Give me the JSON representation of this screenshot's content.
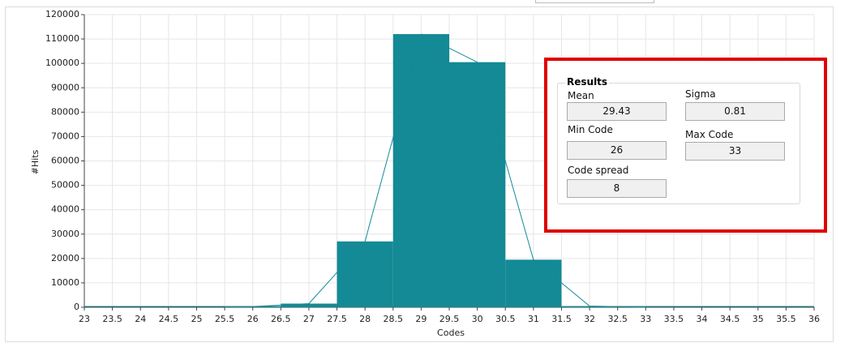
{
  "chart_data": {
    "type": "histogram",
    "xlabel": "Codes",
    "ylabel": "#Hits",
    "bins": [
      25.5,
      26.5,
      27.5,
      28.5,
      29.5,
      30.5,
      31.5,
      32.5,
      33.5
    ],
    "counts": [
      300,
      1500,
      27000,
      112000,
      100500,
      19500,
      500,
      50
    ],
    "color": "#138a96",
    "xlim": [
      23,
      36
    ],
    "ylim": [
      0,
      120000
    ],
    "xticks": [
      23,
      23.5,
      24,
      24.5,
      25,
      25.5,
      26,
      26.5,
      27,
      27.5,
      28,
      28.5,
      29,
      29.5,
      30,
      30.5,
      31,
      31.5,
      32,
      32.5,
      33,
      33.5,
      34,
      34.5,
      35,
      35.5,
      36
    ],
    "yticks": [
      0,
      10000,
      20000,
      30000,
      40000,
      50000,
      60000,
      70000,
      80000,
      90000,
      100000,
      110000,
      120000
    ],
    "grid": true
  },
  "results": {
    "title": "Results",
    "fields": [
      {
        "label": "Mean",
        "value": "29.43"
      },
      {
        "label": "Sigma",
        "value": "0.81"
      },
      {
        "label": "Min Code",
        "value": "26"
      },
      {
        "label": "Max Code",
        "value": "33"
      },
      {
        "label": "Code spread",
        "value": "8"
      }
    ]
  }
}
